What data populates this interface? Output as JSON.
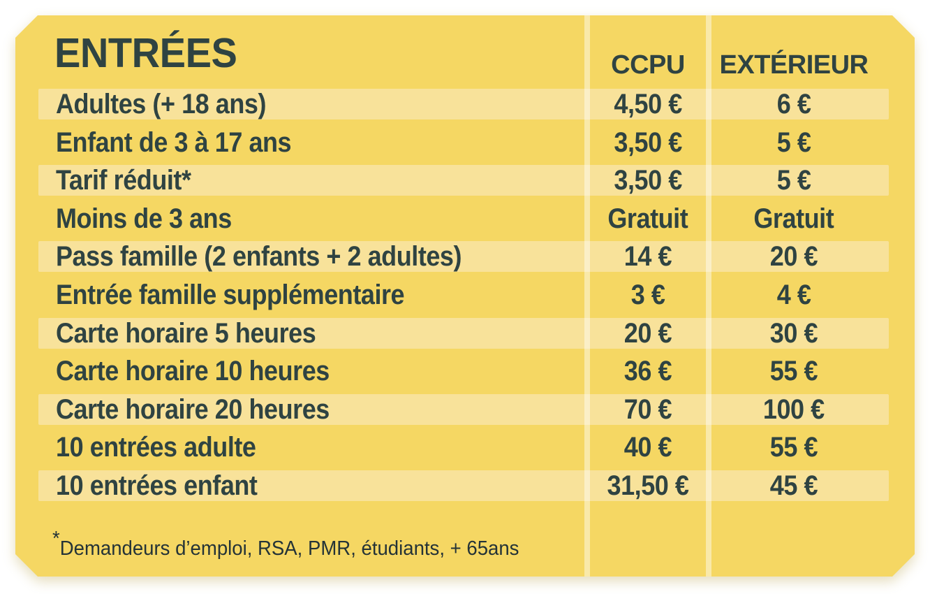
{
  "title": "ENTRÉES",
  "table": {
    "columns": [
      "CCPU",
      "EXTÉRIEUR"
    ],
    "rows": [
      {
        "label": "Adultes (+ 18 ans)",
        "ccpu": "4,50 €",
        "exterieur": "6 €"
      },
      {
        "label": "Enfant de 3 à 17 ans",
        "ccpu": "3,50 €",
        "exterieur": "5 €"
      },
      {
        "label": "Tarif réduit*",
        "ccpu": "3,50 €",
        "exterieur": "5 €"
      },
      {
        "label": "Moins de 3 ans",
        "ccpu": "Gratuit",
        "exterieur": "Gratuit"
      },
      {
        "label": "Pass famille (2 enfants + 2 adultes)",
        "ccpu": "14 €",
        "exterieur": "20 €"
      },
      {
        "label": "Entrée famille supplémentaire",
        "ccpu": "3 €",
        "exterieur": "4 €"
      },
      {
        "label": "Carte horaire 5 heures",
        "ccpu": "20 €",
        "exterieur": "30 €"
      },
      {
        "label": "Carte horaire 10 heures",
        "ccpu": "36 €",
        "exterieur": "55 €"
      },
      {
        "label": "Carte horaire 20 heures",
        "ccpu": "70 €",
        "exterieur": "100 €"
      },
      {
        "label": "10 entrées adulte",
        "ccpu": "40 €",
        "exterieur": "55 €"
      },
      {
        "label": "10 entrées enfant",
        "ccpu": "31,50 €",
        "exterieur": "45 €"
      }
    ]
  },
  "footnote": {
    "star": "*",
    "text": "Demandeurs d’emploi, RSA, PMR, étudiants, + 65ans"
  },
  "colors": {
    "card_bg": "#F5D763",
    "stripe_bg": "#F8E29A",
    "ink": "#2F4342",
    "footnote_ink": "#243337",
    "separator": "rgba(255,255,255,0.45)",
    "page_bg": "#FFFFFF"
  }
}
